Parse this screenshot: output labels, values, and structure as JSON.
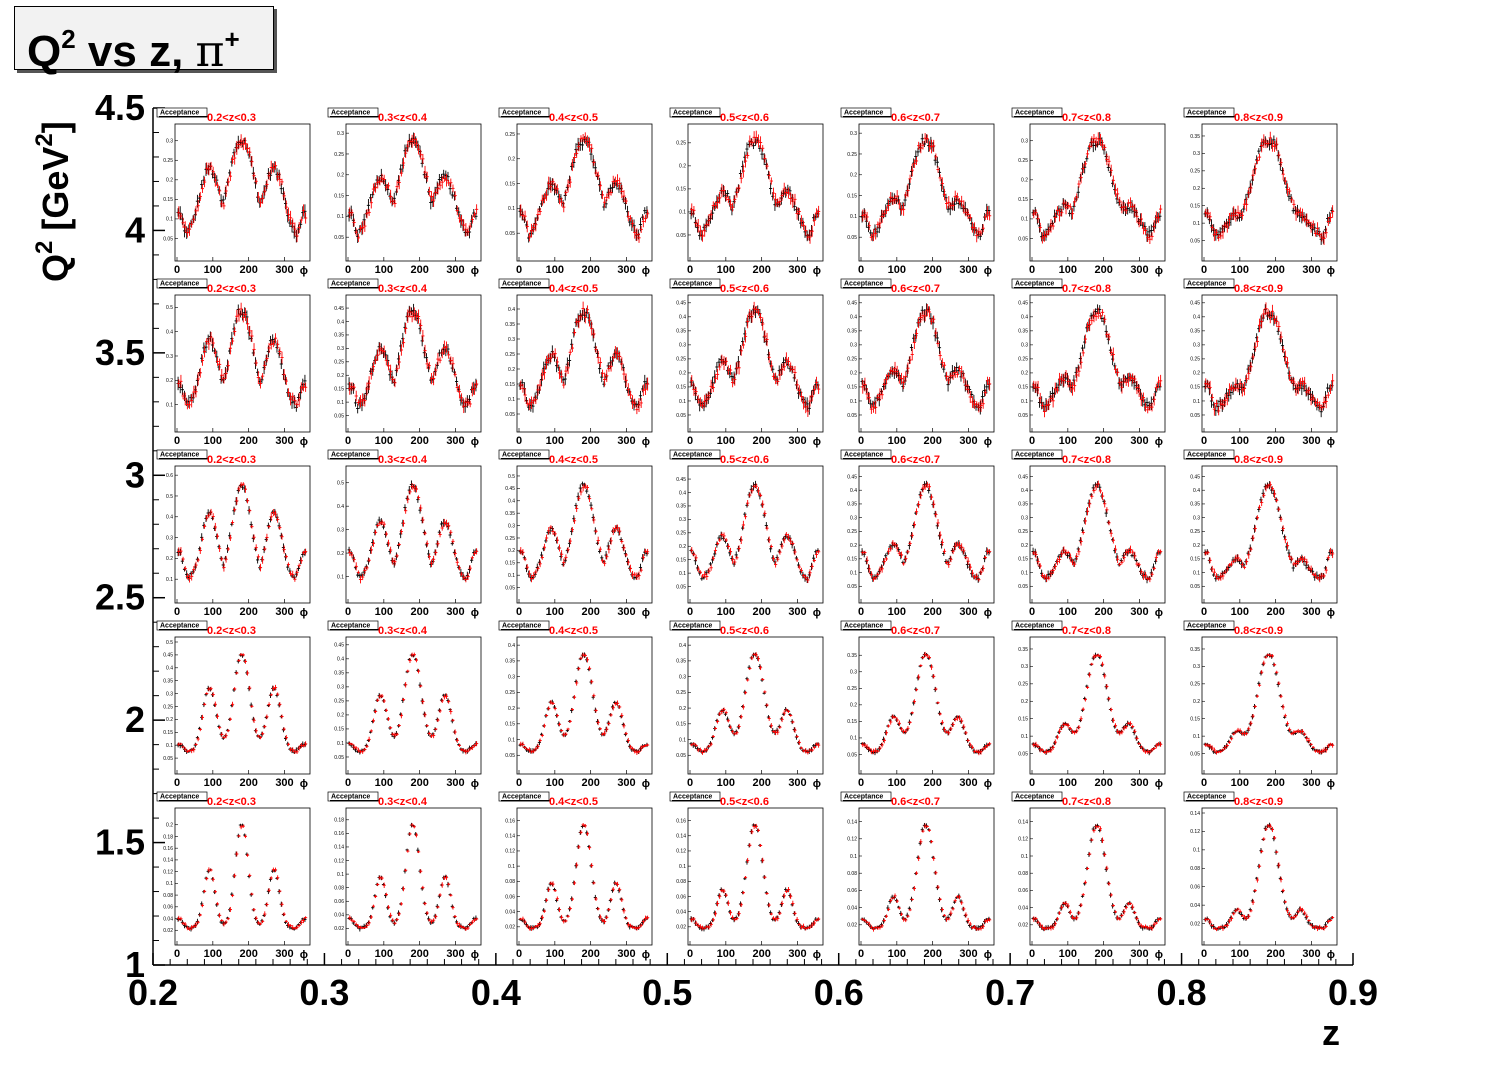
{
  "title": {
    "main": "Q",
    "sup1": "2",
    "middle": " vs z, ",
    "pi": "π",
    "sup2": "+"
  },
  "axes": {
    "x_title": "z",
    "y_title_main": "Q",
    "y_title_sup": "2",
    "y_title_unit": " [GeV",
    "y_title_unit_sup": "2",
    "y_title_close": "]",
    "x_ticks": [
      "0.2",
      "0.3",
      "0.4",
      "0.5",
      "0.6",
      "0.7",
      "0.8",
      "0.9"
    ],
    "y_ticks": [
      "1",
      "1.5",
      "2",
      "2.5",
      "3",
      "3.5",
      "4",
      "4.5"
    ]
  },
  "panel_labels": {
    "acceptance": "Acceptance",
    "phi_label": "ϕ",
    "phi_ticks": [
      "0",
      "100",
      "200",
      "300"
    ],
    "z_bins": [
      "0.2<z<0.3",
      "0.3<z<0.4",
      "0.4<z<0.5",
      "0.5<z<0.6",
      "0.6<z<0.7",
      "0.7<z<0.8",
      "0.8<z<0.9"
    ]
  },
  "colors": {
    "series_black": "#000000",
    "series_red": "#ff0000",
    "z_label": "#ff0000"
  },
  "chart_data": {
    "type": "scatter",
    "x": [
      0.2,
      0.9
    ],
    "y": [
      1,
      4.5
    ],
    "xlim": [
      0.2,
      0.9
    ],
    "ylim": [
      1,
      4.5
    ],
    "sub_xlim": [
      0,
      360
    ],
    "sub_x_ticks": [
      0,
      100,
      200,
      300
    ],
    "rows": [
      {
        "q2_range": [
          3.8,
          4.5
        ],
        "ymax": [
          0.33,
          0.31,
          0.26,
          0.28,
          0.31,
          0.33,
          0.37
        ],
        "y_ticks": [
          [
            0.05,
            0.1,
            0.15,
            0.2,
            0.25,
            0.3
          ],
          [
            0.05,
            0.1,
            0.15,
            0.2,
            0.25,
            0.3
          ],
          [
            0.05,
            0.1,
            0.15,
            0.2,
            0.25
          ],
          [
            0.05,
            0.1,
            0.15,
            0.2,
            0.25
          ],
          [
            0.05,
            0.1,
            0.15,
            0.2,
            0.25,
            0.3
          ],
          [
            0.05,
            0.1,
            0.15,
            0.2,
            0.25,
            0.3
          ],
          [
            0.05,
            0.1,
            0.15,
            0.2,
            0.25,
            0.3,
            0.35
          ]
        ]
      },
      {
        "q2_range": [
          3.1,
          3.8
        ],
        "ymax": [
          0.53,
          0.48,
          0.43,
          0.46,
          0.46,
          0.46,
          0.46
        ],
        "y_ticks": [
          [
            0.1,
            0.2,
            0.3,
            0.4,
            0.5
          ],
          [
            0.05,
            0.1,
            0.15,
            0.2,
            0.25,
            0.3,
            0.35,
            0.4,
            0.45
          ],
          [
            0.05,
            0.1,
            0.15,
            0.2,
            0.25,
            0.3,
            0.35,
            0.4
          ],
          [
            0.05,
            0.1,
            0.15,
            0.2,
            0.25,
            0.3,
            0.35,
            0.4,
            0.45
          ],
          [
            0.05,
            0.1,
            0.15,
            0.2,
            0.25,
            0.3,
            0.35,
            0.4,
            0.45
          ],
          [
            0.05,
            0.1,
            0.15,
            0.2,
            0.25,
            0.3,
            0.35,
            0.4,
            0.45
          ],
          [
            0.05,
            0.1,
            0.15,
            0.2,
            0.25,
            0.3,
            0.35,
            0.4,
            0.45
          ]
        ]
      },
      {
        "q2_range": [
          2.5,
          3.1
        ],
        "ymax": [
          0.62,
          0.55,
          0.52,
          0.48,
          0.47,
          0.47,
          0.47
        ],
        "y_ticks": [
          [
            0.1,
            0.2,
            0.3,
            0.4,
            0.5,
            0.6
          ],
          [
            0.1,
            0.2,
            0.3,
            0.4,
            0.5
          ],
          [
            0.05,
            0.1,
            0.15,
            0.2,
            0.25,
            0.3,
            0.35,
            0.4,
            0.45,
            0.5
          ],
          [
            0.05,
            0.1,
            0.15,
            0.2,
            0.25,
            0.3,
            0.35,
            0.4,
            0.45
          ],
          [
            0.05,
            0.1,
            0.15,
            0.2,
            0.25,
            0.3,
            0.35,
            0.4,
            0.45
          ],
          [
            0.05,
            0.1,
            0.15,
            0.2,
            0.25,
            0.3,
            0.35,
            0.4,
            0.45
          ],
          [
            0.05,
            0.1,
            0.15,
            0.2,
            0.25,
            0.3,
            0.35,
            0.4,
            0.45
          ]
        ]
      },
      {
        "q2_range": [
          1.9,
          2.5
        ],
        "ymax": [
          0.5,
          0.46,
          0.41,
          0.41,
          0.39,
          0.37,
          0.37
        ],
        "y_ticks": [
          [
            0.05,
            0.1,
            0.15,
            0.2,
            0.25,
            0.3,
            0.35,
            0.4,
            0.45,
            0.5
          ],
          [
            0.05,
            0.1,
            0.15,
            0.2,
            0.25,
            0.3,
            0.35,
            0.4,
            0.45
          ],
          [
            0.05,
            0.1,
            0.15,
            0.2,
            0.25,
            0.3,
            0.35,
            0.4
          ],
          [
            0.05,
            0.1,
            0.15,
            0.2,
            0.25,
            0.3,
            0.35,
            0.4
          ],
          [
            0.05,
            0.1,
            0.15,
            0.2,
            0.25,
            0.3,
            0.35
          ],
          [
            0.05,
            0.1,
            0.15,
            0.2,
            0.25,
            0.3,
            0.35
          ],
          [
            0.05,
            0.1,
            0.15,
            0.2,
            0.25,
            0.3,
            0.35
          ]
        ]
      },
      {
        "q2_range": [
          1.0,
          1.9
        ],
        "ymax": [
          0.22,
          0.19,
          0.17,
          0.17,
          0.15,
          0.15,
          0.14
        ],
        "y_ticks": [
          [
            0.02,
            0.04,
            0.06,
            0.08,
            0.1,
            0.12,
            0.14,
            0.16,
            0.18,
            0.2
          ],
          [
            0.02,
            0.04,
            0.06,
            0.08,
            0.1,
            0.12,
            0.14,
            0.16,
            0.18
          ],
          [
            0.02,
            0.04,
            0.06,
            0.08,
            0.1,
            0.12,
            0.14,
            0.16
          ],
          [
            0.02,
            0.04,
            0.06,
            0.08,
            0.1,
            0.12,
            0.14,
            0.16
          ],
          [
            0.02,
            0.04,
            0.06,
            0.08,
            0.1,
            0.12,
            0.14
          ],
          [
            0.02,
            0.04,
            0.06,
            0.08,
            0.1,
            0.12,
            0.14
          ],
          [
            0.02,
            0.04,
            0.06,
            0.08,
            0.1,
            0.12,
            0.14
          ]
        ]
      }
    ]
  }
}
